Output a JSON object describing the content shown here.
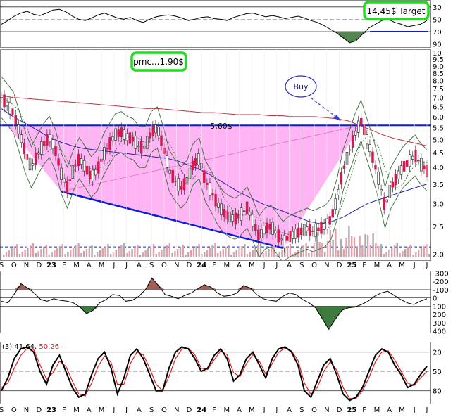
{
  "annotations": {
    "target": "14,45$ Target",
    "pmc": "pmc...1,90$",
    "buy": "Buy",
    "level": "5,60$"
  },
  "colors": {
    "price_up": "#2b2b2b",
    "price_down": "#d6184f",
    "ma_long": "#c0303a",
    "ma_mid": "#2222aa",
    "ma_short": "#2a7a2a",
    "bollinger": "#3a6a3a",
    "triangle_fill": "#ff9cf0",
    "trendline": "#0a1adf",
    "highlight_box": "#1fdc1f",
    "rsi_fill": "#3f7a3f",
    "stoch_k": "#000000",
    "stoch_d": "#e02020"
  },
  "chart_data": [
    {
      "type": "line",
      "panel": "RSI",
      "y_ticks": [
        90,
        70,
        50,
        30
      ],
      "ylim": [
        20,
        95
      ],
      "reference_lines": [
        70,
        50,
        30
      ],
      "series": [
        {
          "values": [
            58,
            52,
            45,
            40,
            37,
            42,
            44,
            40,
            35,
            34,
            38,
            45,
            50,
            52,
            48,
            43,
            40,
            44,
            48,
            50,
            47,
            52,
            55,
            50,
            46,
            44,
            43,
            45,
            48,
            52,
            50,
            47,
            46,
            49,
            50,
            52,
            47,
            44,
            41,
            40,
            43,
            46,
            44,
            46,
            49,
            47,
            45,
            48,
            52,
            55,
            60,
            66,
            72,
            80,
            88,
            85,
            74,
            64,
            58,
            52,
            50,
            55,
            58,
            62,
            60,
            58,
            52
          ]
        }
      ]
    },
    {
      "type": "line",
      "panel": "Price",
      "log_scale": true,
      "y_ticks": [
        "10",
        "9.5",
        "9.0",
        "8.5",
        "8.0",
        "7.5",
        "7.0",
        "6.5",
        "6.0",
        "5.5",
        "5.0",
        "4.5",
        "4.0",
        "3.5",
        "3.0",
        "2.5",
        "2.0"
      ],
      "ylim": [
        1.95,
        10
      ],
      "x_tick_labels": [
        "S",
        "O",
        "N",
        "D",
        "23",
        "F",
        "M",
        "A",
        "M",
        "J",
        "J",
        "A",
        "S",
        "O",
        "N",
        "D",
        "24",
        "F",
        "M",
        "A",
        "M",
        "J",
        "J",
        "A",
        "S",
        "O",
        "N",
        "D",
        "25",
        "F",
        "M",
        "A",
        "M",
        "J",
        "J"
      ],
      "resistance": 5.6,
      "series": [
        {
          "name": "Price",
          "values": [
            7.0,
            6.6,
            6.2,
            5.3,
            4.5,
            4.0,
            4.4,
            4.8,
            5.1,
            4.6,
            3.8,
            3.4,
            3.9,
            4.3,
            4.0,
            3.7,
            3.9,
            4.4,
            4.8,
            5.2,
            5.3,
            5.1,
            5.0,
            4.7,
            4.7,
            5.3,
            5.5,
            4.7,
            3.9,
            3.6,
            3.4,
            3.6,
            4.1,
            4.3,
            3.6,
            3.3,
            3.0,
            2.8,
            2.7,
            2.65,
            2.75,
            2.9,
            2.6,
            2.3,
            2.45,
            2.5,
            2.35,
            2.2,
            2.3,
            2.35,
            2.4,
            2.45,
            2.4,
            2.45,
            2.5,
            2.65,
            3.1,
            3.9,
            4.5,
            5.2,
            5.8,
            5.0,
            4.3,
            3.6,
            2.9,
            3.4,
            3.7,
            4.0,
            4.2,
            4.4,
            4.1,
            3.9
          ]
        },
        {
          "name": "MA long",
          "values": [
            7.1,
            7.0,
            6.95,
            6.9,
            6.85,
            6.8,
            6.75,
            6.7,
            6.65,
            6.6,
            6.55,
            6.5,
            6.45,
            6.4,
            6.4,
            6.35,
            6.3,
            6.25,
            6.2,
            6.2,
            6.15,
            6.1,
            6.1,
            6.1,
            6.05,
            6.05,
            6.0,
            6.0,
            6.0,
            5.95,
            5.9,
            5.8,
            5.6,
            5.4,
            5.2,
            5.05,
            4.95,
            4.85,
            4.75
          ]
        },
        {
          "name": "MA mid",
          "values": [
            6.4,
            6.0,
            5.7,
            5.4,
            5.1,
            4.9,
            4.75,
            4.65,
            4.6,
            4.55,
            4.5,
            4.45,
            4.4,
            4.35,
            4.3,
            4.2,
            4.05,
            3.9,
            3.7,
            3.5,
            3.3,
            3.15,
            3.0,
            2.9,
            2.8,
            2.7,
            2.6,
            2.55,
            2.6,
            2.7,
            2.85,
            3.0,
            3.1,
            3.2,
            3.3,
            3.4,
            3.5
          ]
        }
      ]
    },
    {
      "type": "area",
      "panel": "Momentum",
      "y_ticks": [
        400,
        300,
        200,
        100,
        0,
        -100,
        -200,
        -300
      ],
      "ylim": [
        -320,
        420
      ],
      "reference_lines": [
        100,
        0,
        -100
      ],
      "series": [
        {
          "values": [
            40,
            60,
            -50,
            -170,
            -120,
            -60,
            20,
            40,
            10,
            30,
            40,
            60,
            110,
            190,
            150,
            60,
            20,
            -40,
            -30,
            40,
            30,
            -20,
            -100,
            -240,
            -150,
            -40,
            -20,
            10,
            -30,
            -60,
            -110,
            -160,
            -130,
            -60,
            -20,
            -30,
            -60,
            -150,
            -120,
            -40,
            10,
            30,
            40,
            -20,
            -60,
            -40,
            20,
            60,
            120,
            250,
            380,
            260,
            150,
            120,
            110,
            80,
            40,
            -20,
            -60,
            -80,
            -30,
            20,
            60,
            80,
            40,
            10
          ]
        }
      ]
    },
    {
      "type": "line",
      "panel": "Stochastic",
      "title": "(3) 41.64, 50.26",
      "y_ticks": [
        80,
        50,
        20
      ],
      "ylim": [
        5,
        100
      ],
      "reference_lines": [
        80,
        50,
        20
      ],
      "series": [
        {
          "values": [
            80,
            60,
            30,
            15,
            12,
            20,
            50,
            70,
            40,
            25,
            50,
            75,
            90,
            85,
            55,
            30,
            20,
            45,
            85,
            60,
            25,
            15,
            30,
            55,
            80,
            80,
            45,
            20,
            12,
            15,
            30,
            50,
            45,
            25,
            15,
            30,
            65,
            55,
            30,
            20,
            40,
            60,
            30,
            15,
            12,
            20,
            40,
            80,
            90,
            65,
            40,
            30,
            55,
            85,
            95,
            90,
            75,
            50,
            25,
            15,
            20,
            40,
            55,
            75,
            70,
            55,
            42
          ]
        },
        {
          "values": [
            75,
            68,
            45,
            25,
            14,
            16,
            40,
            62,
            52,
            34,
            42,
            65,
            85,
            88,
            68,
            42,
            26,
            36,
            70,
            70,
            38,
            20,
            24,
            45,
            70,
            80,
            58,
            30,
            15,
            14,
            24,
            45,
            47,
            32,
            18,
            24,
            52,
            58,
            38,
            24,
            34,
            54,
            38,
            20,
            14,
            18,
            33,
            68,
            86,
            75,
            50,
            35,
            48,
            75,
            92,
            92,
            80,
            60,
            35,
            20,
            18,
            32,
            50,
            68,
            72,
            60,
            50
          ]
        }
      ]
    }
  ]
}
